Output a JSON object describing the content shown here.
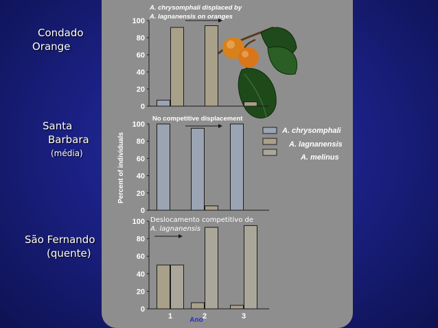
{
  "regions": [
    {
      "line1": "Condado",
      "line2": "Orange",
      "sub": ""
    },
    {
      "line1": "Santa",
      "line2": "Barbara",
      "sub": "(média)"
    },
    {
      "line1": "São Fernando",
      "line2": "(quente)",
      "sub": ""
    }
  ],
  "colors": {
    "series_chrysomphali": "#9aa4b2",
    "series_lagnanensis": "#a9a089",
    "series_melinus": "#aaa79a",
    "panel_bg": "#8e8e8e",
    "background": "#1b2185"
  },
  "chart_data": {
    "type": "bar",
    "ylabel": "Percent of individuals",
    "xlabel": "Ano",
    "categories": [
      "1",
      "2",
      "3"
    ],
    "ylim": [
      0,
      100
    ],
    "yticks": [
      "0",
      "20",
      "40",
      "60",
      "80",
      "100"
    ],
    "legend": {
      "placement": "right",
      "entries": [
        "A. chrysomphali",
        "A. lagnanensis",
        "A. melinus"
      ]
    },
    "panels": [
      {
        "title_italic": "A. chrysomphali",
        "title_rest": " displaced by",
        "title_line2_italic": "A. lagnanensis",
        "title_line2_rest": " on oranges",
        "series": [
          {
            "name": "A. chrysomphali",
            "values": [
              7,
              null,
              0
            ]
          },
          {
            "name": "A. lagnanensis",
            "values": [
              92,
              94,
              5
            ]
          }
        ]
      },
      {
        "title": "No competitive displacement",
        "series": [
          {
            "name": "A. chrysomphali",
            "values": [
              100,
              95,
              100
            ]
          },
          {
            "name": "A. lagnanensis",
            "values": [
              0,
              5,
              0
            ]
          }
        ]
      },
      {
        "title_line1": "Deslocamento competitivo de",
        "title_line2_italic": "A. lagnanensis",
        "series": [
          {
            "name": "A. lagnanensis",
            "values": [
              50,
              7,
              4
            ]
          },
          {
            "name": "A. melinus",
            "values": [
              50,
              93,
              95
            ]
          }
        ]
      }
    ]
  }
}
